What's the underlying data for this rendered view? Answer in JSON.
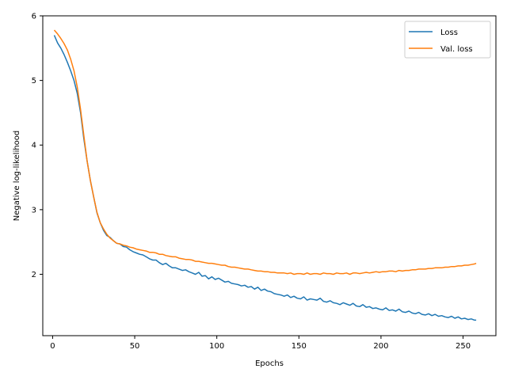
{
  "chart_data": {
    "type": "line",
    "title": "",
    "xlabel": "Epochs",
    "ylabel": "Negative log-likelihood",
    "xlim": [
      -6,
      270
    ],
    "ylim": [
      1.05,
      6.0
    ],
    "xticks": [
      0,
      50,
      100,
      150,
      200,
      250
    ],
    "yticks": [
      2,
      3,
      4,
      5,
      6
    ],
    "grid": false,
    "legend": "top-right",
    "series": [
      {
        "name": "Loss",
        "color": "#1f77b4",
        "x": [
          1,
          3,
          5,
          7,
          9,
          11,
          13,
          15,
          17,
          19,
          21,
          23,
          25,
          27,
          29,
          31,
          33,
          35,
          37,
          39,
          41,
          43,
          45,
          47,
          49,
          51,
          53,
          55,
          57,
          59,
          61,
          63,
          65,
          67,
          69,
          71,
          73,
          75,
          77,
          79,
          81,
          83,
          85,
          87,
          89,
          91,
          93,
          95,
          97,
          99,
          101,
          103,
          105,
          107,
          109,
          111,
          113,
          115,
          117,
          119,
          121,
          123,
          125,
          127,
          129,
          131,
          133,
          135,
          137,
          139,
          141,
          143,
          145,
          147,
          149,
          151,
          153,
          155,
          157,
          159,
          161,
          163,
          165,
          167,
          169,
          171,
          173,
          175,
          177,
          179,
          181,
          183,
          185,
          187,
          189,
          191,
          193,
          195,
          197,
          199,
          201,
          203,
          205,
          207,
          209,
          211,
          213,
          215,
          217,
          219,
          221,
          223,
          225,
          227,
          229,
          231,
          233,
          235,
          237,
          239,
          241,
          243,
          245,
          247,
          249,
          251,
          253,
          255,
          257,
          258
        ],
        "y": [
          5.7,
          5.58,
          5.5,
          5.4,
          5.28,
          5.15,
          5.0,
          4.8,
          4.5,
          4.1,
          3.75,
          3.45,
          3.2,
          2.95,
          2.8,
          2.68,
          2.6,
          2.57,
          2.52,
          2.48,
          2.47,
          2.43,
          2.42,
          2.38,
          2.35,
          2.33,
          2.31,
          2.3,
          2.27,
          2.24,
          2.22,
          2.22,
          2.18,
          2.15,
          2.17,
          2.13,
          2.1,
          2.1,
          2.08,
          2.06,
          2.07,
          2.04,
          2.02,
          2.0,
          2.03,
          1.97,
          1.98,
          1.93,
          1.96,
          1.92,
          1.94,
          1.91,
          1.88,
          1.89,
          1.86,
          1.85,
          1.84,
          1.82,
          1.83,
          1.8,
          1.81,
          1.77,
          1.8,
          1.75,
          1.77,
          1.74,
          1.73,
          1.7,
          1.69,
          1.68,
          1.66,
          1.68,
          1.64,
          1.66,
          1.63,
          1.62,
          1.65,
          1.6,
          1.62,
          1.61,
          1.6,
          1.63,
          1.58,
          1.57,
          1.59,
          1.56,
          1.55,
          1.53,
          1.56,
          1.54,
          1.52,
          1.55,
          1.51,
          1.5,
          1.53,
          1.49,
          1.5,
          1.47,
          1.48,
          1.46,
          1.45,
          1.48,
          1.44,
          1.45,
          1.43,
          1.46,
          1.42,
          1.41,
          1.43,
          1.4,
          1.39,
          1.41,
          1.38,
          1.37,
          1.39,
          1.36,
          1.38,
          1.35,
          1.36,
          1.34,
          1.33,
          1.35,
          1.32,
          1.34,
          1.31,
          1.32,
          1.3,
          1.31,
          1.29,
          1.29
        ]
      },
      {
        "name": "Val. loss",
        "color": "#ff7f0e",
        "x": [
          1,
          3,
          5,
          7,
          9,
          11,
          13,
          15,
          17,
          19,
          21,
          23,
          25,
          27,
          29,
          31,
          33,
          35,
          37,
          39,
          41,
          43,
          45,
          47,
          49,
          51,
          53,
          55,
          57,
          59,
          61,
          63,
          65,
          67,
          69,
          71,
          73,
          75,
          77,
          79,
          81,
          83,
          85,
          87,
          89,
          91,
          93,
          95,
          97,
          99,
          101,
          103,
          105,
          107,
          109,
          111,
          113,
          115,
          117,
          119,
          121,
          123,
          125,
          127,
          129,
          131,
          133,
          135,
          137,
          139,
          141,
          143,
          145,
          147,
          149,
          151,
          153,
          155,
          157,
          159,
          161,
          163,
          165,
          167,
          169,
          171,
          173,
          175,
          177,
          179,
          181,
          183,
          185,
          187,
          189,
          191,
          193,
          195,
          197,
          199,
          201,
          203,
          205,
          207,
          209,
          211,
          213,
          215,
          217,
          219,
          221,
          223,
          225,
          227,
          229,
          231,
          233,
          235,
          237,
          239,
          241,
          243,
          245,
          247,
          249,
          251,
          253,
          255,
          257,
          258
        ],
        "y": [
          5.78,
          5.72,
          5.65,
          5.57,
          5.47,
          5.33,
          5.15,
          4.9,
          4.55,
          4.15,
          3.75,
          3.45,
          3.2,
          2.96,
          2.8,
          2.7,
          2.62,
          2.56,
          2.52,
          2.48,
          2.47,
          2.45,
          2.44,
          2.42,
          2.41,
          2.39,
          2.38,
          2.37,
          2.36,
          2.34,
          2.34,
          2.33,
          2.31,
          2.31,
          2.29,
          2.28,
          2.27,
          2.27,
          2.25,
          2.24,
          2.23,
          2.23,
          2.22,
          2.2,
          2.2,
          2.19,
          2.18,
          2.17,
          2.17,
          2.16,
          2.15,
          2.14,
          2.14,
          2.12,
          2.11,
          2.11,
          2.1,
          2.09,
          2.08,
          2.08,
          2.07,
          2.06,
          2.05,
          2.05,
          2.04,
          2.04,
          2.03,
          2.03,
          2.02,
          2.02,
          2.02,
          2.01,
          2.02,
          2.0,
          2.01,
          2.01,
          2.0,
          2.02,
          2.0,
          2.01,
          2.01,
          2.0,
          2.02,
          2.01,
          2.01,
          2.0,
          2.02,
          2.01,
          2.01,
          2.02,
          2.0,
          2.02,
          2.02,
          2.01,
          2.02,
          2.03,
          2.02,
          2.03,
          2.04,
          2.03,
          2.04,
          2.04,
          2.05,
          2.05,
          2.04,
          2.06,
          2.05,
          2.06,
          2.06,
          2.07,
          2.07,
          2.08,
          2.08,
          2.08,
          2.09,
          2.09,
          2.1,
          2.1,
          2.1,
          2.11,
          2.11,
          2.12,
          2.12,
          2.13,
          2.13,
          2.14,
          2.14,
          2.15,
          2.16,
          2.17
        ]
      }
    ]
  }
}
